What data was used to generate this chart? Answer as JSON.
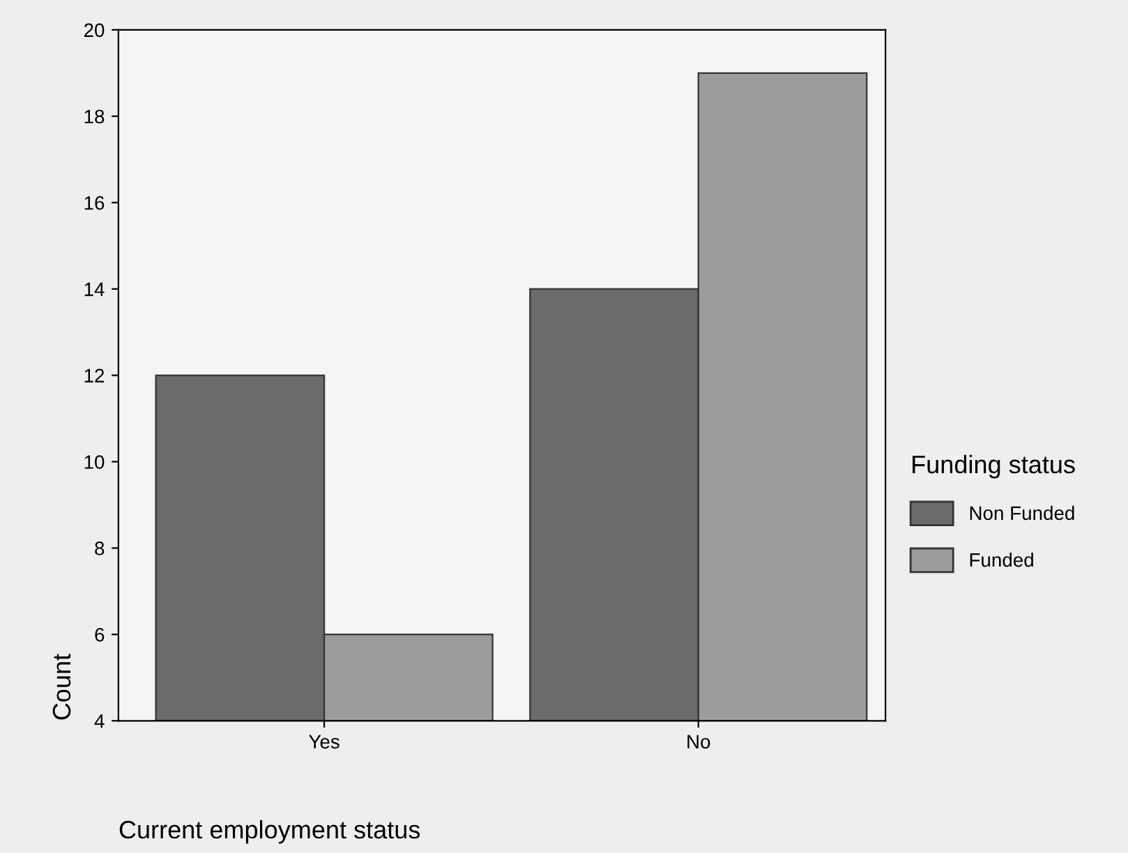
{
  "chart_data": {
    "type": "bar",
    "xlabel": "Current employment status",
    "ylabel": "Count",
    "legend_title": "Funding status",
    "categories": [
      "Yes",
      "No"
    ],
    "series": [
      {
        "name": "Non Funded",
        "color": "#6b6b6b",
        "values": [
          12,
          14
        ]
      },
      {
        "name": "Funded",
        "color": "#9c9c9c",
        "values": [
          6,
          19
        ]
      }
    ],
    "ylim": [
      4,
      20
    ],
    "yticks": [
      4,
      6,
      8,
      10,
      12,
      14,
      16,
      18,
      20
    ],
    "grid": false,
    "legend": "right"
  }
}
